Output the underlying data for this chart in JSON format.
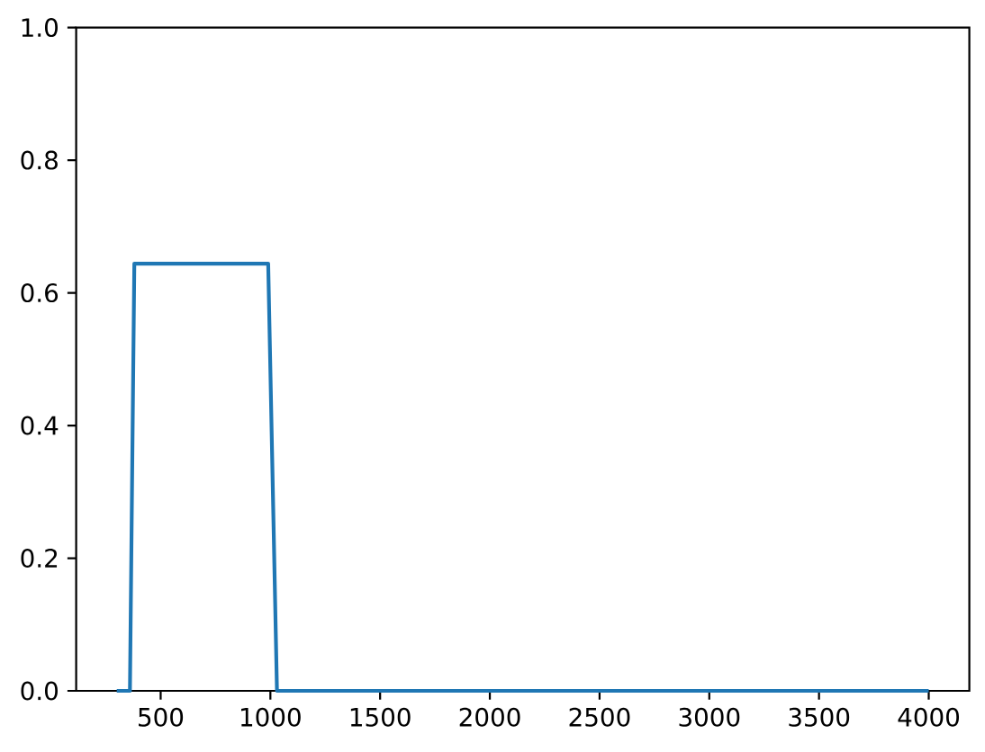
{
  "chart_data": {
    "type": "line",
    "x": [
      300,
      360,
      380,
      990,
      1030,
      4000
    ],
    "values": [
      0,
      0,
      0.644,
      0.644,
      0,
      0
    ],
    "color": "#1f77b4",
    "line_style": "solid",
    "xlim": [
      115,
      4185
    ],
    "ylim": [
      0,
      1
    ],
    "xticks": [
      500,
      1000,
      1500,
      2000,
      2500,
      3000,
      3500,
      4000
    ],
    "yticks": [
      {
        "value": 0,
        "label": "0.0"
      },
      0.2,
      0.4,
      0.6,
      0.8,
      {
        "value": 1,
        "label": "1.0"
      }
    ]
  }
}
